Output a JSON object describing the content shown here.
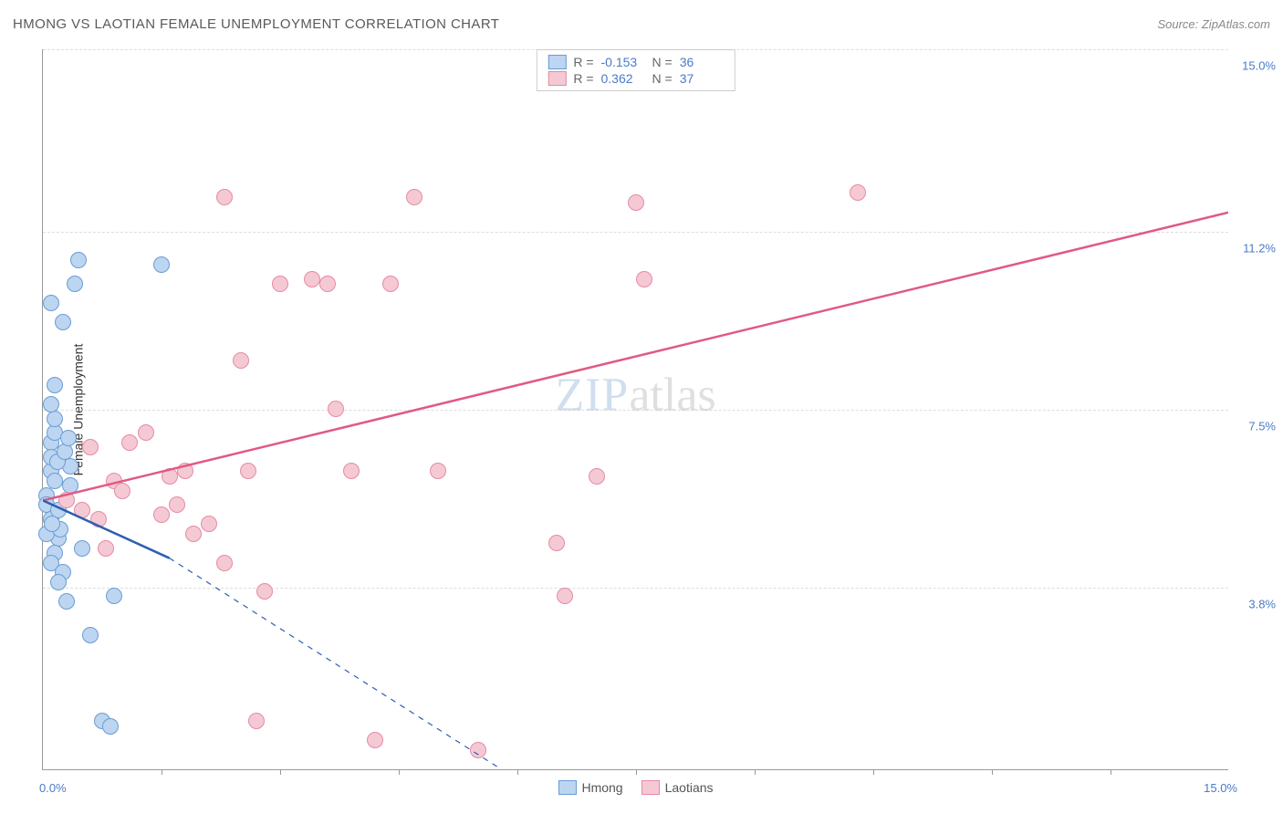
{
  "title": "HMONG VS LAOTIAN FEMALE UNEMPLOYMENT CORRELATION CHART",
  "source_prefix": "Source: ",
  "source": "ZipAtlas.com",
  "ylabel": "Female Unemployment",
  "watermark": {
    "a": "ZIP",
    "b": "atlas"
  },
  "colors": {
    "series1_fill": "#bcd5f0",
    "series1_border": "#6a9cd6",
    "series2_fill": "#f5c9d4",
    "series2_border": "#e68aa5",
    "trend1": "#2b5fb0",
    "trend2": "#e05a82",
    "tick_text": "#4a7bc8",
    "grid": "#dddddd"
  },
  "chart": {
    "type": "scatter",
    "x_min": 0.0,
    "x_max": 15.0,
    "y_min": 0.0,
    "y_max": 15.0,
    "x_axis": {
      "min_label": "0.0%",
      "max_label": "15.0%",
      "tick_step": 1.5
    },
    "y_ticks": [
      {
        "v": 15.0,
        "label": "15.0%"
      },
      {
        "v": 11.2,
        "label": "11.2%"
      },
      {
        "v": 7.5,
        "label": "7.5%"
      },
      {
        "v": 3.8,
        "label": "3.8%"
      }
    ],
    "marker_radius": 9,
    "stats": [
      {
        "series": "series1",
        "R": "-0.153",
        "N": "36"
      },
      {
        "series": "series2",
        "R": "0.362",
        "N": "37"
      }
    ],
    "legend": [
      {
        "series": "series1",
        "label": "Hmong"
      },
      {
        "series": "series2",
        "label": "Laotians"
      }
    ],
    "series1_points": [
      [
        0.05,
        5.7
      ],
      [
        0.05,
        5.5
      ],
      [
        0.1,
        5.2
      ],
      [
        0.1,
        6.2
      ],
      [
        0.1,
        6.8
      ],
      [
        0.15,
        7.0
      ],
      [
        0.15,
        7.3
      ],
      [
        0.15,
        6.0
      ],
      [
        0.2,
        5.4
      ],
      [
        0.2,
        4.8
      ],
      [
        0.15,
        4.5
      ],
      [
        0.1,
        4.3
      ],
      [
        0.25,
        4.1
      ],
      [
        0.2,
        3.9
      ],
      [
        0.3,
        3.5
      ],
      [
        0.15,
        8.0
      ],
      [
        0.4,
        10.1
      ],
      [
        0.45,
        10.6
      ],
      [
        0.25,
        9.3
      ],
      [
        0.1,
        9.7
      ],
      [
        0.6,
        2.8
      ],
      [
        0.75,
        1.0
      ],
      [
        0.85,
        0.9
      ],
      [
        0.9,
        3.6
      ],
      [
        1.5,
        10.5
      ],
      [
        0.05,
        4.9
      ],
      [
        0.1,
        7.6
      ],
      [
        0.35,
        5.9
      ],
      [
        0.1,
        6.5
      ],
      [
        0.35,
        6.3
      ],
      [
        0.5,
        4.6
      ],
      [
        0.22,
        5.0
      ],
      [
        0.18,
        6.4
      ],
      [
        0.12,
        5.1
      ],
      [
        0.28,
        6.6
      ],
      [
        0.32,
        6.9
      ]
    ],
    "series2_points": [
      [
        0.3,
        5.6
      ],
      [
        0.5,
        5.4
      ],
      [
        0.7,
        5.2
      ],
      [
        0.8,
        4.6
      ],
      [
        0.9,
        6.0
      ],
      [
        1.1,
        6.8
      ],
      [
        1.3,
        7.0
      ],
      [
        1.5,
        5.3
      ],
      [
        1.6,
        6.1
      ],
      [
        1.7,
        5.5
      ],
      [
        1.8,
        6.2
      ],
      [
        1.9,
        4.9
      ],
      [
        2.1,
        5.1
      ],
      [
        2.3,
        4.3
      ],
      [
        2.3,
        11.9
      ],
      [
        2.5,
        8.5
      ],
      [
        2.6,
        6.2
      ],
      [
        2.7,
        1.0
      ],
      [
        2.8,
        3.7
      ],
      [
        3.0,
        10.1
      ],
      [
        3.4,
        10.2
      ],
      [
        3.6,
        10.1
      ],
      [
        3.7,
        7.5
      ],
      [
        3.9,
        6.2
      ],
      [
        4.2,
        0.6
      ],
      [
        4.4,
        10.1
      ],
      [
        4.7,
        11.9
      ],
      [
        5.0,
        6.2
      ],
      [
        5.5,
        0.4
      ],
      [
        6.5,
        4.7
      ],
      [
        6.6,
        3.6
      ],
      [
        7.0,
        6.1
      ],
      [
        7.5,
        11.8
      ],
      [
        7.6,
        10.2
      ],
      [
        10.3,
        12.0
      ],
      [
        0.6,
        6.7
      ],
      [
        1.0,
        5.8
      ]
    ],
    "trend_lines": {
      "series1": {
        "solid": {
          "x1": 0.0,
          "y1": 5.6,
          "x2": 1.6,
          "y2": 4.4
        },
        "dashed": {
          "x1": 1.6,
          "y1": 4.4,
          "x2": 5.8,
          "y2": 0.0
        },
        "width": 2.5
      },
      "series2": {
        "solid": {
          "x1": 0.0,
          "y1": 5.6,
          "x2": 15.0,
          "y2": 11.6
        },
        "width": 2.5
      }
    }
  }
}
